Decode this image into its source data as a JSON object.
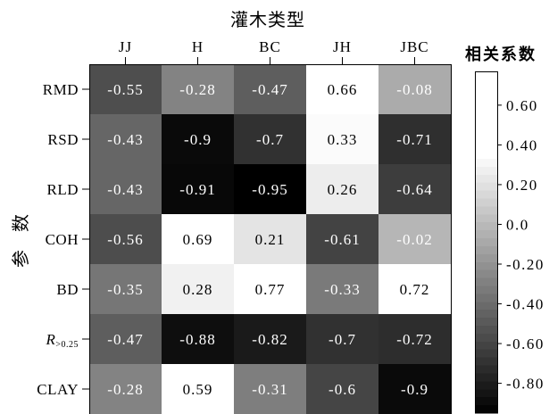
{
  "chart_data": {
    "type": "heatmap",
    "xlabel": "灌木类型",
    "ylabel": "参数",
    "x_categories": [
      "JJ",
      "H",
      "BC",
      "JH",
      "JBC"
    ],
    "y_categories": [
      {
        "text": "RMD"
      },
      {
        "text": "RSD"
      },
      {
        "text": "RLD"
      },
      {
        "text": "COH"
      },
      {
        "text": "BD"
      },
      {
        "text": "R",
        "sub": ">0.25"
      },
      {
        "text": "CLAY"
      }
    ],
    "values": [
      [
        -0.55,
        -0.28,
        -0.47,
        0.66,
        -0.08
      ],
      [
        -0.43,
        -0.9,
        -0.7,
        0.33,
        -0.71
      ],
      [
        -0.43,
        -0.91,
        -0.95,
        0.26,
        -0.64
      ],
      [
        -0.56,
        0.69,
        0.21,
        -0.61,
        -0.02
      ],
      [
        -0.35,
        0.28,
        0.77,
        -0.33,
        0.72
      ],
      [
        -0.47,
        -0.88,
        -0.82,
        -0.7,
        -0.72
      ],
      [
        -0.28,
        0.59,
        -0.31,
        -0.6,
        -0.9
      ]
    ],
    "colorbar": {
      "title": "相关系数",
      "min": -0.95,
      "max": 0.77,
      "ticks": [
        0.6,
        0.4,
        0.2,
        0.0,
        -0.2,
        -0.4,
        -0.6,
        -0.8
      ],
      "tick_labels": [
        "0.60",
        "0.40",
        "0.20",
        "0.0",
        "-0.20",
        "-0.40",
        "-0.60",
        "-0.80"
      ],
      "low_color": "#000000",
      "high_color": "#ffffff",
      "placement": "right"
    }
  }
}
